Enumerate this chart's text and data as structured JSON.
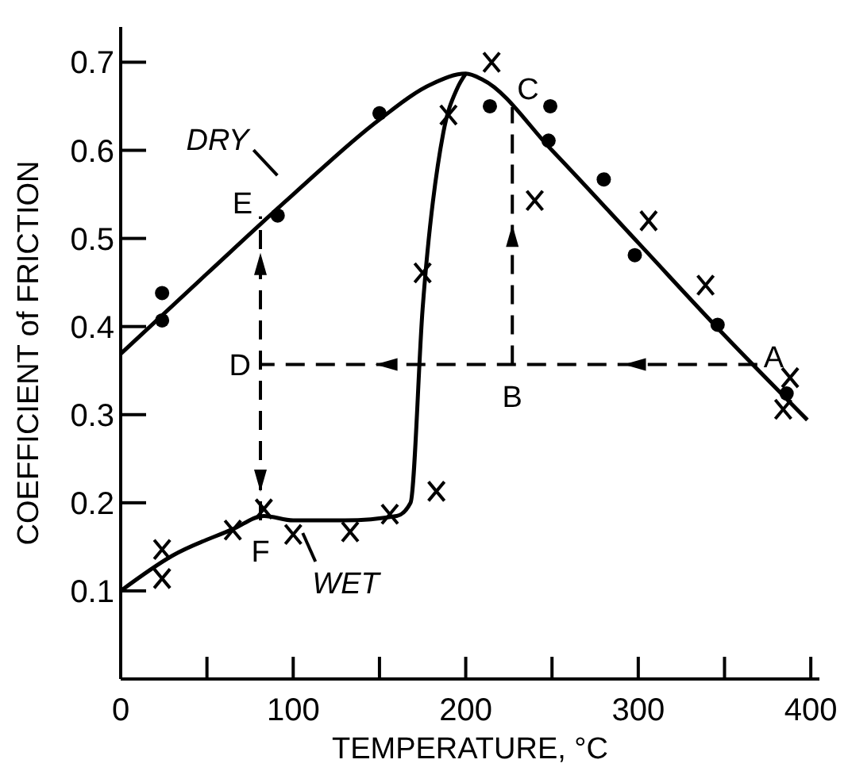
{
  "chart_data": {
    "type": "scatter",
    "xlabel": "TEMPERATURE, °C",
    "ylabel": "COEFFICIENT of FRICTION",
    "xlim": [
      0,
      405
    ],
    "ylim": [
      0,
      0.74
    ],
    "xticks": [
      0,
      {
        "value": 50,
        "label": null
      },
      100,
      {
        "value": 150,
        "label": null
      },
      200,
      {
        "value": 250,
        "label": null
      },
      300,
      {
        "value": 350,
        "label": null
      },
      400
    ],
    "yticks": [
      0.1,
      0.2,
      0.3,
      0.4,
      0.5,
      0.6,
      0.7
    ],
    "series": [
      {
        "type": "line",
        "name": "DRY",
        "color": "#000000",
        "marker": "none",
        "x": [
          0,
          50,
          100,
          150,
          180,
          200,
          210,
          250,
          300,
          350,
          398
        ],
        "values": [
          0.369,
          0.46,
          0.55,
          0.635,
          0.675,
          0.687,
          0.68,
          0.6,
          0.495,
          0.39,
          0.294
        ]
      },
      {
        "type": "line",
        "name": "WET",
        "color": "#000000",
        "marker": "none",
        "x": [
          0,
          30,
          65,
          83,
          100,
          130,
          160,
          168,
          175,
          187,
          195,
          200
        ],
        "values": [
          0.1,
          0.14,
          0.17,
          0.185,
          0.18,
          0.18,
          0.185,
          0.2,
          0.42,
          0.62,
          0.67,
          0.687
        ]
      },
      {
        "type": "scatter",
        "color": "#000000",
        "marker": "circle",
        "x": [
          24,
          24,
          91,
          150,
          214,
          249,
          248,
          280,
          298,
          346,
          386
        ],
        "values": [
          0.438,
          0.407,
          0.526,
          0.642,
          0.65,
          0.65,
          0.611,
          0.567,
          0.481,
          0.402,
          0.324
        ]
      },
      {
        "type": "scatter",
        "color": "#000000",
        "marker": "cross",
        "x": [
          24,
          24,
          65,
          83,
          100,
          133,
          156,
          183,
          175,
          190,
          215,
          240,
          306,
          339,
          388,
          384
        ],
        "values": [
          0.147,
          0.114,
          0.169,
          0.193,
          0.164,
          0.167,
          0.187,
          0.213,
          0.461,
          0.64,
          0.7,
          0.543,
          0.52,
          0.447,
          0.342,
          0.306
        ]
      },
      {
        "type": "line",
        "color": "#000000",
        "marker": "none",
        "line_style": "dashed",
        "x": [
          369,
          227,
          81
        ],
        "values": [
          0.357,
          0.357,
          0.357
        ]
      },
      {
        "type": "line",
        "color": "#000000",
        "marker": "none",
        "line_style": "dashed",
        "x": [
          227,
          227
        ],
        "values": [
          0.357,
          0.649
        ]
      },
      {
        "type": "line",
        "color": "#000000",
        "marker": "none",
        "line_style": "dashed",
        "x": [
          81,
          81
        ],
        "values": [
          0.18,
          0.525
        ]
      }
    ],
    "annotations": [
      {
        "text": "A",
        "x": 369,
        "y": 0.357
      },
      {
        "text": "B",
        "x": 227,
        "y": 0.357
      },
      {
        "text": "C",
        "x": 227,
        "y": 0.649
      },
      {
        "text": "D",
        "x": 81,
        "y": 0.357
      },
      {
        "text": "E",
        "x": 81,
        "y": 0.525
      },
      {
        "text": "F",
        "x": 81,
        "y": 0.18
      }
    ]
  }
}
